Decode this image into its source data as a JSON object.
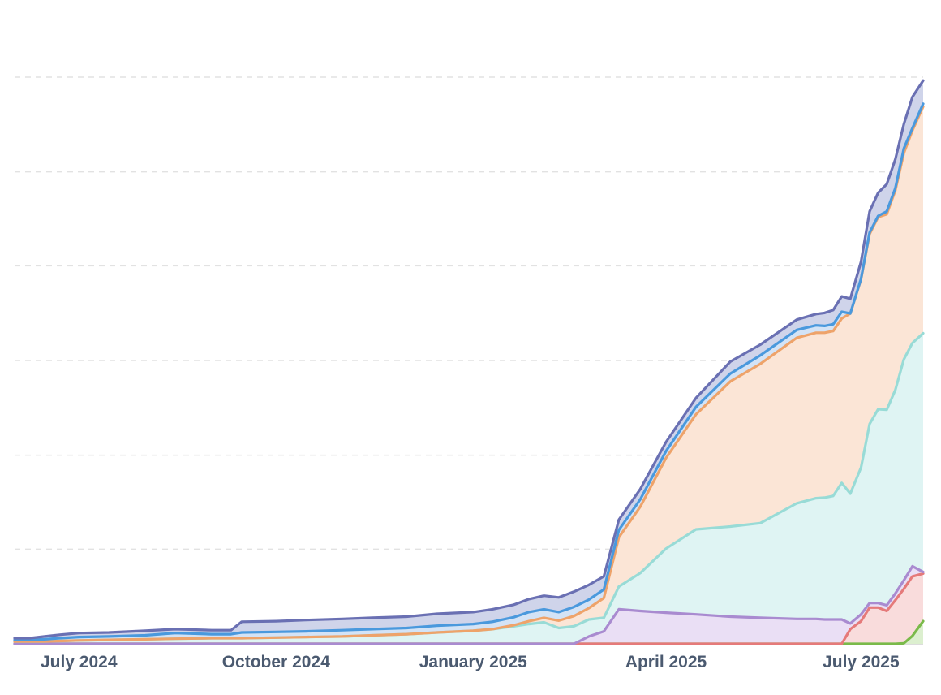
{
  "chart_data": {
    "type": "area",
    "stacked": true,
    "title": "",
    "xlabel": "",
    "ylabel": "",
    "x_ticks": [
      {
        "date": "2024-07-01",
        "label": "July 2024"
      },
      {
        "date": "2024-10-01",
        "label": "October 2024"
      },
      {
        "date": "2025-01-01",
        "label": "January 2025"
      },
      {
        "date": "2025-04-01",
        "label": "April 2025"
      },
      {
        "date": "2025-07-01",
        "label": "July 2025"
      }
    ],
    "xlim": [
      "2024-06-01",
      "2025-07-30"
    ],
    "ylim": [
      0,
      100
    ],
    "y_gridlines": [
      16.7,
      33.3,
      50,
      66.7,
      83.3,
      100
    ],
    "y_tick_labels_visible": false,
    "legend": "none",
    "x": [
      "2024-06-01",
      "2024-06-08",
      "2024-06-15",
      "2024-06-22",
      "2024-07-01",
      "2024-07-15",
      "2024-08-01",
      "2024-08-15",
      "2024-09-01",
      "2024-09-10",
      "2024-09-15",
      "2024-10-01",
      "2024-10-15",
      "2024-11-01",
      "2024-11-15",
      "2024-12-01",
      "2024-12-15",
      "2025-01-01",
      "2025-01-10",
      "2025-01-20",
      "2025-01-27",
      "2025-02-03",
      "2025-02-10",
      "2025-02-17",
      "2025-02-24",
      "2025-03-03",
      "2025-03-10",
      "2025-03-20",
      "2025-04-01",
      "2025-04-15",
      "2025-05-01",
      "2025-05-15",
      "2025-06-01",
      "2025-06-10",
      "2025-06-14",
      "2025-06-18",
      "2025-06-22",
      "2025-06-26",
      "2025-07-01",
      "2025-07-05",
      "2025-07-09",
      "2025-07-13",
      "2025-07-17",
      "2025-07-21",
      "2025-07-25",
      "2025-07-30"
    ],
    "series": [
      {
        "color": "#7aba4a",
        "fill": "#dcefcf",
        "values": [
          0,
          0,
          0,
          0,
          0,
          0,
          0,
          0,
          0,
          0,
          0,
          0,
          0,
          0,
          0,
          0,
          0,
          0,
          0,
          0,
          0,
          0,
          0,
          0,
          0,
          0,
          0,
          0,
          0,
          0,
          0,
          0,
          0,
          0,
          0,
          0,
          0,
          0,
          0,
          0,
          0,
          0,
          0,
          0.1,
          1.4,
          4.0
        ]
      },
      {
        "color": "#e57a7a",
        "fill": "#f9dcdc",
        "values": [
          0,
          0,
          0,
          0,
          0,
          0,
          0,
          0,
          0,
          0,
          0,
          0,
          0,
          0,
          0,
          0,
          0,
          0,
          0,
          0,
          0,
          0,
          0,
          0,
          0,
          0,
          0,
          0,
          0,
          0,
          0,
          0,
          0,
          0,
          0,
          0,
          0,
          2.6,
          4.0,
          6.4,
          6.4,
          5.8,
          7.7,
          9.6,
          10.5,
          8.4
        ]
      },
      {
        "color": "#a98bd0",
        "fill": "#eadff5",
        "values": [
          0,
          0,
          0,
          0,
          0,
          0,
          0,
          0,
          0,
          0,
          0,
          0,
          0,
          0,
          0,
          0,
          0,
          0,
          0,
          0,
          0,
          0,
          0,
          0,
          1.3,
          2.2,
          6.1,
          5.8,
          5.5,
          5.2,
          4.8,
          4.6,
          4.4,
          4.4,
          4.3,
          4.3,
          4.3,
          1.0,
          1.2,
          0.8,
          0.8,
          1.0,
          1.2,
          1.5,
          1.8,
          0.3
        ]
      },
      {
        "color": "#98dbd6",
        "fill": "#dff4f3",
        "values": [
          0.4,
          0.4,
          0.4,
          0.5,
          0.6,
          0.7,
          0.8,
          0.9,
          1.0,
          1.0,
          1.0,
          1.1,
          1.2,
          1.3,
          1.5,
          1.7,
          2.0,
          2.3,
          2.6,
          3.1,
          3.5,
          3.8,
          2.8,
          3.1,
          3.0,
          2.4,
          4.0,
          6.7,
          11.3,
          15.0,
          15.9,
          16.7,
          20.4,
          21.3,
          21.5,
          21.8,
          24.1,
          22.9,
          25.9,
          31.6,
          34.2,
          34.5,
          35.9,
          39.0,
          39.4,
          42.1
        ]
      },
      {
        "color": "#eea36a",
        "fill": "#fbe5d6",
        "values": [
          0,
          0,
          0,
          0,
          0,
          0,
          0,
          0,
          0,
          0,
          0,
          0,
          0,
          0,
          0,
          0,
          0,
          0,
          0,
          0.2,
          0.5,
          0.8,
          1.3,
          1.8,
          2.0,
          3.5,
          8.7,
          11.7,
          16.0,
          20.3,
          25.6,
          28.1,
          29.2,
          29.2,
          29.1,
          29.1,
          29.0,
          31.8,
          33.2,
          33.5,
          33.9,
          34.5,
          35.2,
          36.4,
          37.5,
          40.0
        ]
      },
      {
        "color": "#4a99dd",
        "fill": "#d3e3f6",
        "values": [
          0.3,
          0.3,
          0.4,
          0.5,
          0.6,
          0.6,
          0.7,
          1.0,
          0.7,
          0.7,
          1.0,
          1.0,
          1.0,
          1.1,
          1.1,
          1.1,
          1.2,
          1.2,
          1.3,
          1.4,
          1.6,
          1.5,
          1.5,
          1.6,
          1.5,
          1.5,
          1.3,
          1.3,
          1.2,
          1.3,
          1.4,
          1.5,
          1.4,
          1.3,
          1.2,
          1.2,
          1.2,
          0.0,
          0.1,
          0.3,
          0.2,
          0.5,
          0.4,
          0.8,
          0.4,
          0.5
        ]
      },
      {
        "color": "#6a70b3",
        "fill": "#cfd4ea",
        "values": [
          0.3,
          0.3,
          0.5,
          0.6,
          0.7,
          0.7,
          0.8,
          0.7,
          0.7,
          0.7,
          1.9,
          1.9,
          2.0,
          2.0,
          2.0,
          2.0,
          2.1,
          2.1,
          2.2,
          2.2,
          2.3,
          2.4,
          2.6,
          2.7,
          2.6,
          2.3,
          1.8,
          1.8,
          1.6,
          1.6,
          2.1,
          1.9,
          1.8,
          2.0,
          2.3,
          2.5,
          2.7,
          2.6,
          3.0,
          3.7,
          4.1,
          4.8,
          5.1,
          4.3,
          5.5,
          4.1
        ]
      }
    ]
  }
}
